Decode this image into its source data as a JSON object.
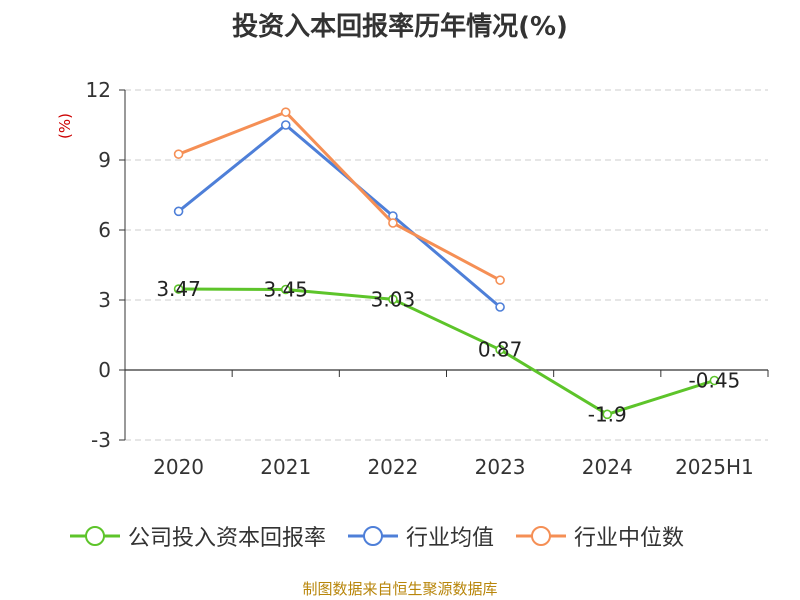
{
  "source_note": "制图数据来自恒生聚源数据库",
  "chart_data": {
    "type": "line",
    "title": "投资入本回报率历年情况(%)",
    "ylabel": "(%)",
    "xlabel": "",
    "categories": [
      "2020",
      "2021",
      "2022",
      "2023",
      "2024",
      "2025H1"
    ],
    "ylim": [
      -3,
      12
    ],
    "yticks": [
      -3,
      0,
      3,
      6,
      9,
      12
    ],
    "grid": true,
    "legend_position": "bottom",
    "series": [
      {
        "name": "公司投入资本回报率",
        "color": "#5dc42a",
        "values": [
          3.47,
          3.45,
          3.03,
          0.87,
          -1.9,
          -0.45
        ],
        "labels": [
          "3.47",
          "3.45",
          "3.03",
          "0.87",
          "-1.9",
          "-0.45"
        ]
      },
      {
        "name": "行业均值",
        "color": "#4e7fd8",
        "values": [
          6.8,
          10.5,
          6.6,
          2.7,
          null,
          null
        ]
      },
      {
        "name": "行业中位数",
        "color": "#f58f55",
        "values": [
          9.25,
          11.05,
          6.3,
          3.85,
          null,
          null
        ]
      }
    ]
  }
}
